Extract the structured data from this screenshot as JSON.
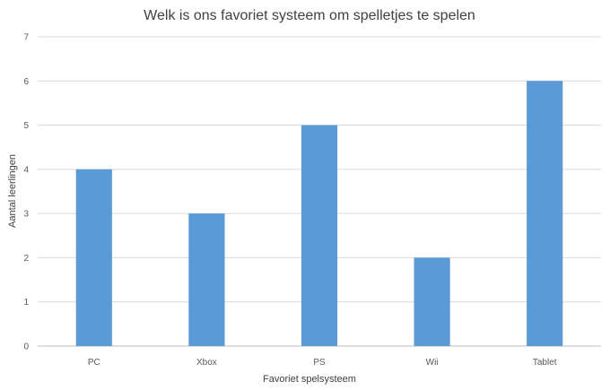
{
  "chart_data": {
    "type": "bar",
    "title": "Welk is ons favoriet systeem om spelletjes te spelen",
    "xlabel": "Favoriet spelsysteem",
    "ylabel": "Aantal leerlingen",
    "categories": [
      "PC",
      "Xbox",
      "PS",
      "Wii",
      "Tablet"
    ],
    "values": [
      4,
      3,
      5,
      2,
      6
    ],
    "ylim": [
      0,
      7
    ],
    "yticks": [
      "0",
      "1",
      "2",
      "3",
      "4",
      "5",
      "6",
      "7"
    ],
    "grid": true,
    "legend": "none",
    "bar_color": "#5b9bd5"
  }
}
